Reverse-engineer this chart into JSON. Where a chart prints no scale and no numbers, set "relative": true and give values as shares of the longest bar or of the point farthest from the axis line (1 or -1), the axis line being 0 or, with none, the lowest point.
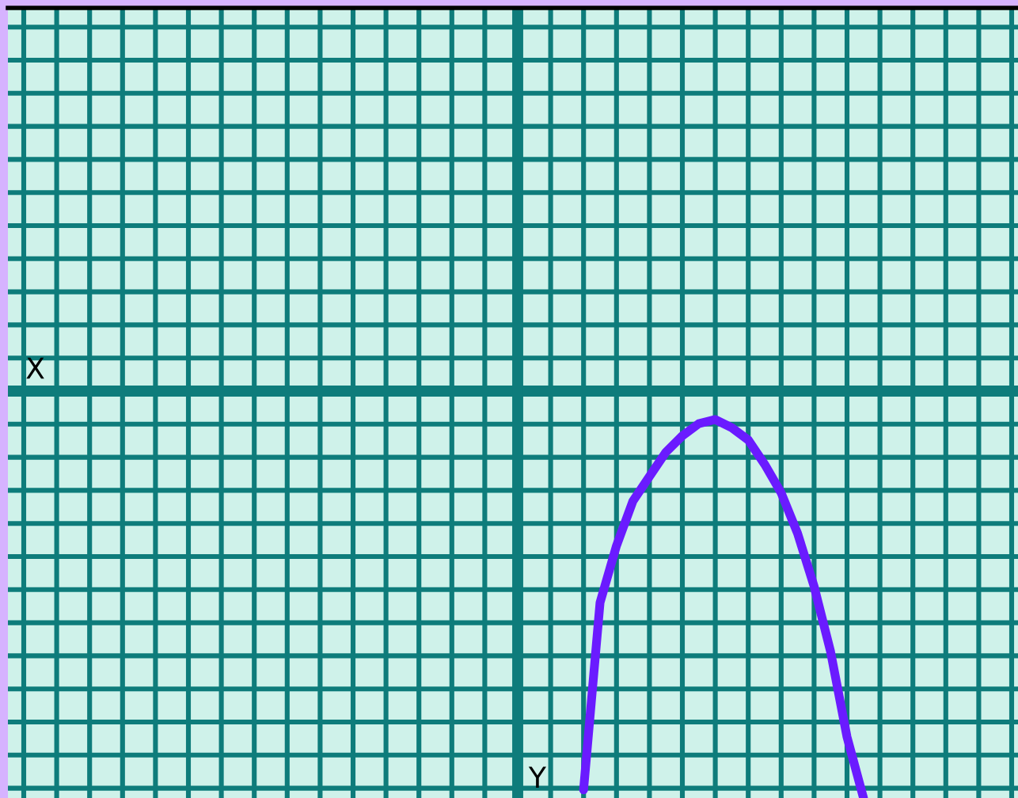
{
  "chart_data": {
    "type": "line",
    "relative": true,
    "xlabel": "X",
    "ylabel": "Y",
    "grid": true,
    "categories": [
      null,
      null,
      null,
      null,
      null,
      null,
      null,
      null,
      null,
      null,
      null,
      null,
      null,
      null,
      null,
      null,
      null,
      null,
      null,
      null,
      null,
      null,
      null,
      null,
      null,
      null,
      null,
      null,
      null,
      null,
      null,
      null,
      null,
      null,
      null,
      null,
      null,
      null,
      null,
      null,
      null,
      null,
      null,
      null,
      null,
      null,
      null,
      null,
      null,
      null,
      null,
      null,
      null,
      null,
      null,
      null,
      null,
      null,
      null,
      null,
      null
    ],
    "series": [
      {
        "color": "#6a1bff",
        "values": [
          null,
          null,
          null,
          null,
          null,
          null,
          null,
          null,
          null,
          null,
          null,
          null,
          null,
          null,
          null,
          null,
          null,
          null,
          null,
          null,
          null,
          null,
          null,
          null,
          null,
          null,
          null,
          null,
          null,
          null,
          null,
          null,
          null,
          null,
          -0.98,
          -0.52,
          -0.38,
          -0.27,
          -0.21,
          -0.15,
          -0.11,
          -0.08,
          -0.07,
          -0.09,
          -0.12,
          -0.18,
          -0.25,
          -0.35,
          -0.48,
          -0.64,
          -0.85,
          -1,
          null,
          null,
          null,
          null,
          null,
          null,
          null,
          null,
          null
        ]
      }
    ]
  }
}
